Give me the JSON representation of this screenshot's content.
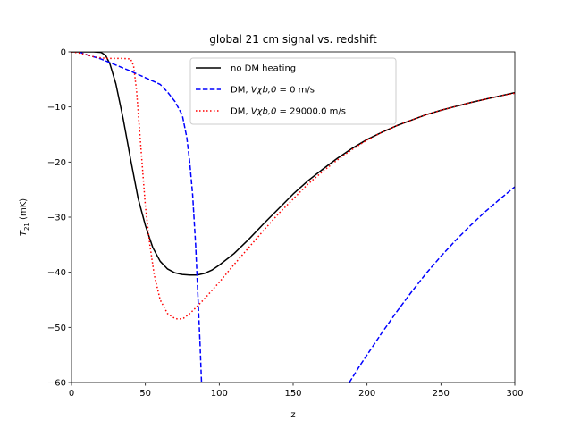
{
  "chart_data": {
    "type": "line",
    "title": "global 21 cm signal vs. redshift",
    "xlabel": "z",
    "ylabel_main": "T",
    "ylabel_sub": "21",
    "ylabel_unit": " (mK)",
    "xlim": [
      0,
      300
    ],
    "ylim": [
      -60,
      0
    ],
    "xticks": [
      0,
      50,
      100,
      150,
      200,
      250,
      300
    ],
    "yticks": [
      0,
      -10,
      -20,
      -30,
      -40,
      -50,
      -60
    ],
    "xtick_labels": [
      "0",
      "50",
      "100",
      "150",
      "200",
      "250",
      "300"
    ],
    "ytick_labels": [
      "0",
      "−10",
      "−20",
      "−30",
      "−40",
      "−50",
      "−60"
    ],
    "grid": false,
    "legend_position": "top-center",
    "series": [
      {
        "name": "no DM heating",
        "color": "#000000",
        "dash": "solid",
        "x": [
          0,
          5,
          10,
          15,
          20,
          23,
          26,
          30,
          35,
          40,
          45,
          50,
          55,
          60,
          65,
          70,
          75,
          80,
          85,
          90,
          95,
          100,
          110,
          120,
          130,
          140,
          150,
          160,
          170,
          180,
          190,
          200,
          210,
          220,
          230,
          240,
          250,
          260,
          270,
          280,
          290,
          300
        ],
        "y": [
          0,
          0,
          0,
          0,
          -0.1,
          -0.6,
          -2.2,
          -5.8,
          -12.2,
          -19.5,
          -26.5,
          -31.5,
          -35.5,
          -38.0,
          -39.4,
          -40.1,
          -40.4,
          -40.5,
          -40.5,
          -40.2,
          -39.6,
          -38.7,
          -36.6,
          -34.0,
          -31.2,
          -28.5,
          -25.8,
          -23.4,
          -21.3,
          -19.3,
          -17.5,
          -15.9,
          -14.6,
          -13.4,
          -12.4,
          -11.4,
          -10.6,
          -9.9,
          -9.2,
          -8.6,
          -8.0,
          -7.4
        ]
      },
      {
        "name": "DM, Vχb,0 = 0 m/s",
        "legend_prefix": "DM, ",
        "legend_math": "Vχb,0",
        "legend_suffix": " = 0 m/s",
        "color": "#0000ff",
        "dash": "dashed",
        "segments": [
          {
            "x": [
              5,
              10,
              20,
              30,
              40,
              50,
              60,
              65,
              70,
              75,
              78,
              80,
              82,
              84,
              86,
              87,
              88
            ],
            "y": [
              0,
              -0.5,
              -1.3,
              -2.4,
              -3.5,
              -4.7,
              -5.9,
              -7.3,
              -9.0,
              -11.5,
              -15.5,
              -20.0,
              -26.0,
              -35.0,
              -47.0,
              -53.0,
              -60.0
            ]
          },
          {
            "x": [
              188,
              195,
              200,
              210,
              220,
              230,
              240,
              250,
              260,
              270,
              280,
              290,
              300
            ],
            "y": [
              -60.0,
              -57.0,
              -55.0,
              -51.0,
              -47.2,
              -43.6,
              -40.2,
              -37.1,
              -34.2,
              -31.5,
              -29.0,
              -26.7,
              -24.5
            ]
          }
        ]
      },
      {
        "name": "DM, Vχb,0 = 29000.0 m/s",
        "legend_prefix": "DM, ",
        "legend_math": "Vχb,0",
        "legend_suffix": " = 29000.0 m/s",
        "color": "#ff0000",
        "dash": "dotted",
        "x": [
          0,
          5,
          10,
          15,
          20,
          25,
          30,
          35,
          40,
          42,
          44,
          46,
          48,
          50,
          53,
          56,
          60,
          65,
          70,
          73,
          76,
          80,
          85,
          90,
          100,
          110,
          120,
          130,
          140,
          150,
          160,
          170,
          180,
          190,
          200,
          210,
          220,
          230,
          240,
          250,
          260,
          270,
          280,
          290,
          300
        ],
        "y": [
          0,
          -0.2,
          -0.5,
          -0.9,
          -1.1,
          -1.2,
          -1.2,
          -1.2,
          -1.3,
          -2.5,
          -7.0,
          -14.0,
          -21.0,
          -28.0,
          -35.0,
          -40.5,
          -45.0,
          -47.5,
          -48.4,
          -48.5,
          -48.3,
          -47.5,
          -46.2,
          -44.8,
          -41.8,
          -38.6,
          -35.5,
          -32.4,
          -29.4,
          -26.7,
          -24.0,
          -21.7,
          -19.6,
          -17.7,
          -16.0,
          -14.6,
          -13.4,
          -12.4,
          -11.4,
          -10.6,
          -9.9,
          -9.2,
          -8.6,
          -8.0,
          -7.5
        ]
      }
    ]
  }
}
